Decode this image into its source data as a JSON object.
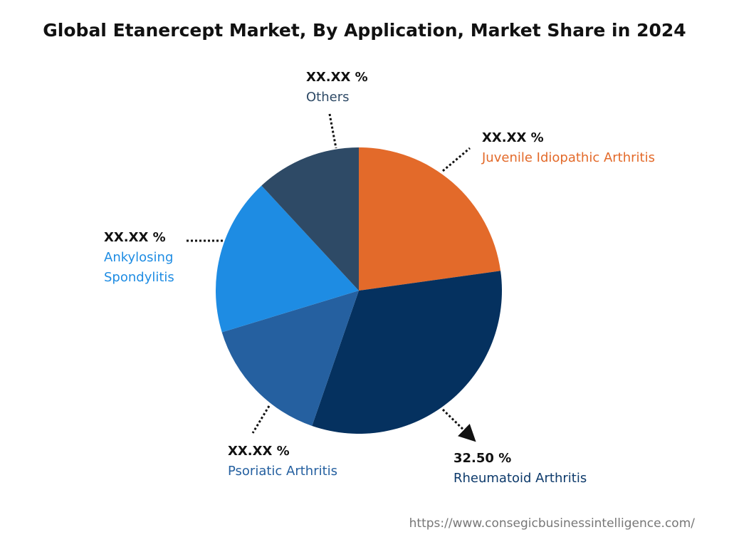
{
  "chart_data": {
    "type": "pie",
    "title": "Global Etanercept Market, By Application, Market Share in 2024",
    "categories": [
      "Juvenile Idiopathic Arthritis",
      "Rheumatoid Arthritis",
      "Psoriatic Arthritis",
      "Ankylosing Spondylitis",
      "Others"
    ],
    "values": [
      22.8,
      32.5,
      15,
      17.8,
      11.9
    ],
    "value_labels": [
      "XX.XX %",
      "32.50 %",
      "XX.XX %",
      "XX.XX %",
      "XX.XX %"
    ],
    "colors": [
      "#e36a2a",
      "#05315f",
      "#2560a0",
      "#1e8ce3",
      "#2e4a66"
    ],
    "source": "https://www.consegicbusinessintelligence.com/"
  }
}
